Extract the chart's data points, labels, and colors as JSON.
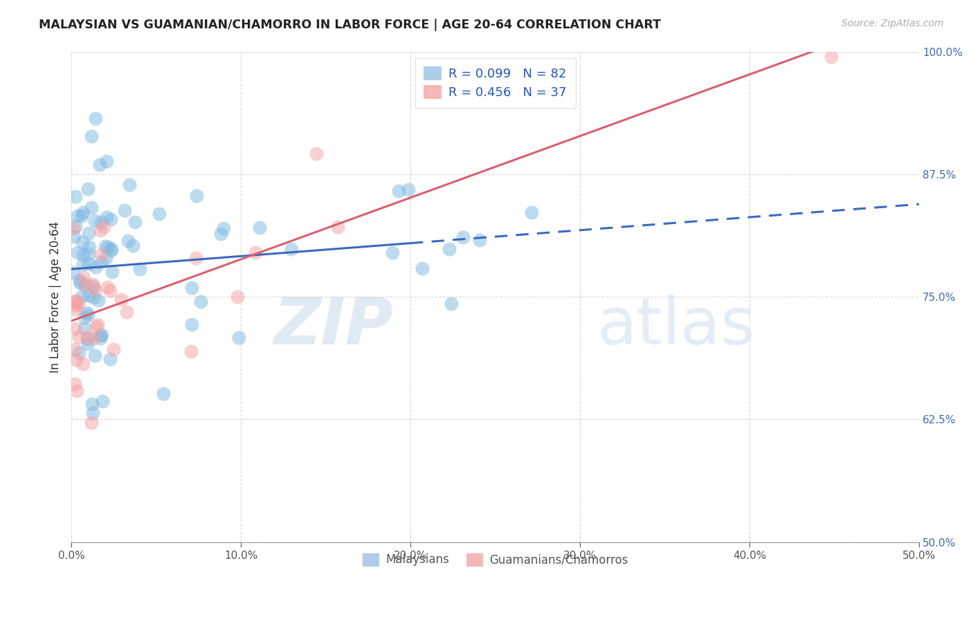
{
  "title": "MALAYSIAN VS GUAMANIAN/CHAMORRO IN LABOR FORCE | AGE 20-64 CORRELATION CHART",
  "source": "Source: ZipAtlas.com",
  "ylabel": "In Labor Force | Age 20-64",
  "xlim": [
    0.0,
    50.0
  ],
  "ylim": [
    50.0,
    100.0
  ],
  "xticks": [
    0.0,
    10.0,
    20.0,
    30.0,
    40.0,
    50.0
  ],
  "yticks": [
    50.0,
    62.5,
    75.0,
    87.5,
    100.0
  ],
  "xtick_labels": [
    "0.0%",
    "10.0%",
    "20.0%",
    "30.0%",
    "40.0%",
    "50.0%"
  ],
  "ytick_labels": [
    "50.0%",
    "62.5%",
    "75.0%",
    "87.5%",
    "100.0%"
  ],
  "blue_R": 0.099,
  "blue_N": 82,
  "pink_R": 0.456,
  "pink_N": 37,
  "blue_color": "#7db8e0",
  "pink_color": "#f4a0a0",
  "blue_line_color": "#3a6abf",
  "pink_line_color": "#d95f6e",
  "legend_label_blue": "Malaysians",
  "legend_label_pink": "Guamanians/Chamorros",
  "watermark_zip": "ZIP",
  "watermark_atlas": "atlas",
  "blue_seed": 123,
  "pink_seed": 456
}
